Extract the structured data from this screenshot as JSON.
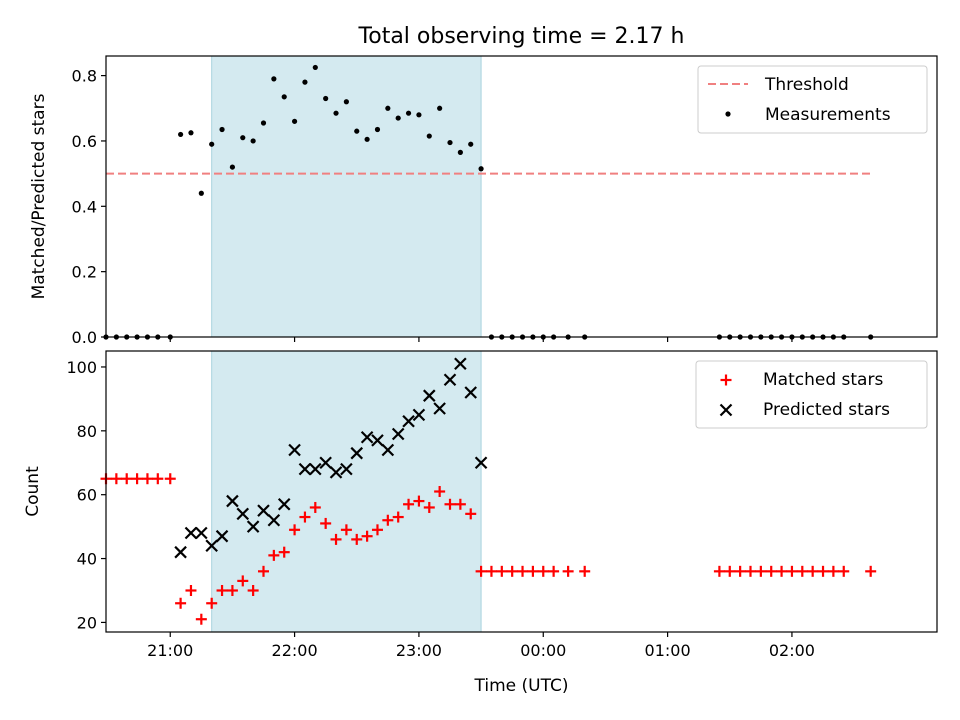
{
  "chart_data": [
    {
      "type": "scatter",
      "title": "Total observing time = 2.17 h",
      "ylabel": "Matched/Predicted stars",
      "xlabel": "",
      "xlim": [
        "20:29",
        "03:10"
      ],
      "ylim": [
        0,
        0.86
      ],
      "yticks": [
        0.0,
        0.2,
        0.4,
        0.6,
        0.8
      ],
      "ytick_labels": [
        "0.0",
        "0.2",
        "0.4",
        "0.6",
        "0.8"
      ],
      "xticks": [
        "21:00",
        "22:00",
        "23:00",
        "00:00",
        "01:00",
        "02:00"
      ],
      "grid": false,
      "legend_position": "top-right",
      "shaded_span": {
        "start": "21:20",
        "end": "23:30",
        "color": "#d4eaf0"
      },
      "threshold": {
        "name": "Threshold",
        "value": 0.5,
        "start": "20:29",
        "end": "02:38",
        "color": "#f08080"
      },
      "series": [
        {
          "name": "Measurements",
          "color": "#000000",
          "marker": "dot",
          "x": [
            "20:29",
            "20:34",
            "20:39",
            "20:44",
            "20:49",
            "20:54",
            "21:00",
            "21:05",
            "21:10",
            "21:15",
            "21:20",
            "21:25",
            "21:30",
            "21:35",
            "21:40",
            "21:45",
            "21:50",
            "21:55",
            "22:00",
            "22:05",
            "22:10",
            "22:15",
            "22:20",
            "22:25",
            "22:30",
            "22:35",
            "22:40",
            "22:45",
            "22:50",
            "22:55",
            "23:00",
            "23:05",
            "23:10",
            "23:15",
            "23:20",
            "23:25",
            "23:30",
            "23:35",
            "23:40",
            "23:45",
            "23:50",
            "23:55",
            "00:00",
            "00:05",
            "00:12",
            "00:20",
            "01:25",
            "01:30",
            "01:35",
            "01:40",
            "01:45",
            "01:50",
            "01:55",
            "02:00",
            "02:05",
            "02:10",
            "02:15",
            "02:20",
            "02:25",
            "02:38"
          ],
          "y": [
            0,
            0,
            0,
            0,
            0,
            0,
            0,
            0.62,
            0.625,
            0.44,
            0.59,
            0.635,
            0.52,
            0.61,
            0.6,
            0.655,
            0.79,
            0.735,
            0.66,
            0.78,
            0.825,
            0.73,
            0.685,
            0.72,
            0.63,
            0.605,
            0.635,
            0.7,
            0.67,
            0.685,
            0.68,
            0.615,
            0.7,
            0.595,
            0.565,
            0.59,
            0.515,
            0,
            0,
            0,
            0,
            0,
            0,
            0,
            0,
            0,
            0,
            0,
            0,
            0,
            0,
            0,
            0,
            0,
            0,
            0,
            0,
            0,
            0,
            0
          ]
        }
      ]
    },
    {
      "type": "scatter",
      "title": "",
      "ylabel": "Count",
      "xlabel": "Time (UTC)",
      "xlim": [
        "20:29",
        "03:10"
      ],
      "ylim": [
        17,
        105
      ],
      "yticks": [
        20,
        40,
        60,
        80,
        100
      ],
      "ytick_labels": [
        "20",
        "40",
        "60",
        "80",
        "100"
      ],
      "xticks": [
        "21:00",
        "22:00",
        "23:00",
        "00:00",
        "01:00",
        "02:00"
      ],
      "xtick_labels": [
        "21:00",
        "22:00",
        "23:00",
        "00:00",
        "01:00",
        "02:00"
      ],
      "grid": false,
      "legend_position": "top-right",
      "shaded_span": {
        "start": "21:20",
        "end": "23:30",
        "color": "#d4eaf0"
      },
      "series": [
        {
          "name": "Matched stars",
          "color": "#ff0000",
          "marker": "plus",
          "x": [
            "20:29",
            "20:34",
            "20:39",
            "20:44",
            "20:49",
            "20:54",
            "21:00",
            "21:05",
            "21:10",
            "21:15",
            "21:20",
            "21:25",
            "21:30",
            "21:35",
            "21:40",
            "21:45",
            "21:50",
            "21:55",
            "22:00",
            "22:05",
            "22:10",
            "22:15",
            "22:20",
            "22:25",
            "22:30",
            "22:35",
            "22:40",
            "22:45",
            "22:50",
            "22:55",
            "23:00",
            "23:05",
            "23:10",
            "23:15",
            "23:20",
            "23:25",
            "23:30",
            "23:35",
            "23:40",
            "23:45",
            "23:50",
            "23:55",
            "00:00",
            "00:05",
            "00:12",
            "00:20",
            "01:25",
            "01:30",
            "01:35",
            "01:40",
            "01:45",
            "01:50",
            "01:55",
            "02:00",
            "02:05",
            "02:10",
            "02:15",
            "02:20",
            "02:25",
            "02:38"
          ],
          "y": [
            65,
            65,
            65,
            65,
            65,
            65,
            65,
            26,
            30,
            21,
            26,
            30,
            30,
            33,
            30,
            36,
            41,
            42,
            49,
            53,
            56,
            51,
            46,
            49,
            46,
            47,
            49,
            52,
            53,
            57,
            58,
            56,
            61,
            57,
            57,
            54,
            36,
            36,
            36,
            36,
            36,
            36,
            36,
            36,
            36,
            36,
            36,
            36,
            36,
            36,
            36,
            36,
            36,
            36,
            36,
            36,
            36,
            36,
            36,
            36
          ]
        },
        {
          "name": "Predicted stars",
          "color": "#000000",
          "marker": "x",
          "x": [
            "21:05",
            "21:10",
            "21:15",
            "21:20",
            "21:25",
            "21:30",
            "21:35",
            "21:40",
            "21:45",
            "21:50",
            "21:55",
            "22:00",
            "22:05",
            "22:10",
            "22:15",
            "22:20",
            "22:25",
            "22:30",
            "22:35",
            "22:40",
            "22:45",
            "22:50",
            "22:55",
            "23:00",
            "23:05",
            "23:10",
            "23:15",
            "23:20",
            "23:25",
            "23:30"
          ],
          "y": [
            42,
            48,
            48,
            44,
            47,
            58,
            54,
            50,
            55,
            52,
            57,
            74,
            68,
            68,
            70,
            67,
            68,
            73,
            78,
            77,
            74,
            79,
            83,
            85,
            91,
            87,
            96,
            101,
            92,
            70
          ]
        }
      ]
    }
  ]
}
